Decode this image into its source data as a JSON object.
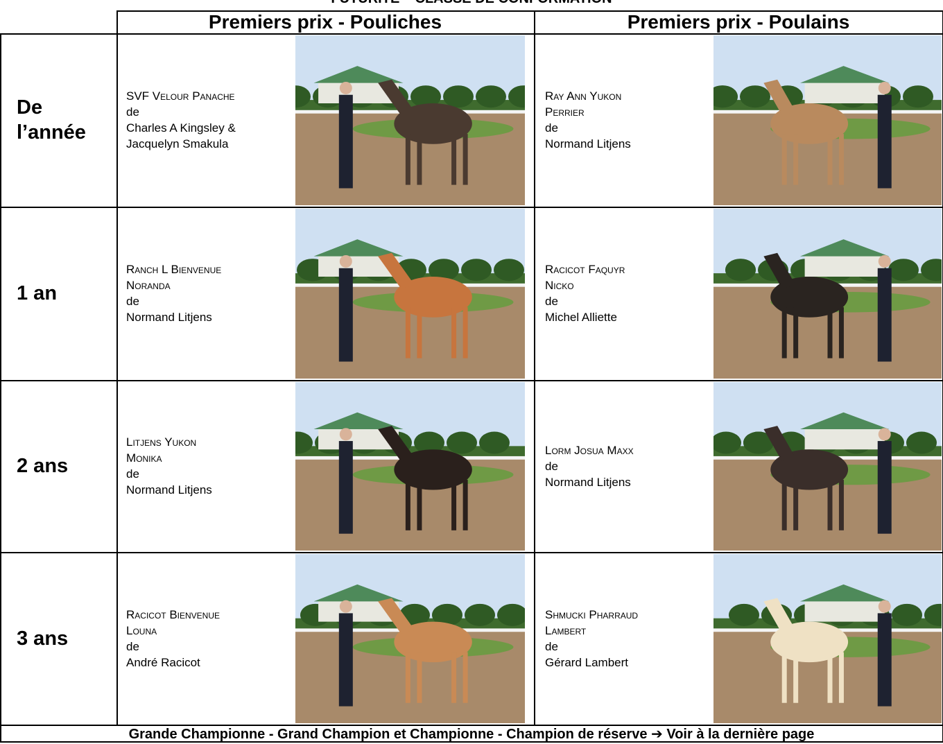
{
  "header": {
    "title": "FUTURITÉ – CLASSE DE CONFORMATION",
    "columns": [
      "Premiers prix - Pouliches",
      "Premiers prix - Poulains"
    ]
  },
  "rows": [
    {
      "label": [
        "De",
        "l’année"
      ],
      "entries": [
        {
          "name": [
            "SVF Velour Panache"
          ],
          "de": "de",
          "owner": [
            "Charles A Kingsley &",
            "Jacquelyn Smakula"
          ]
        },
        {
          "name": [
            "Ray Ann Yukon",
            "Perrier"
          ],
          "de": "de",
          "owner": [
            "Normand Litjens"
          ]
        }
      ]
    },
    {
      "label": [
        "1 an"
      ],
      "entries": [
        {
          "name": [
            "Ranch L Bienvenue",
            "Noranda"
          ],
          "de": "de",
          "owner": [
            "Normand Litjens"
          ]
        },
        {
          "name": [
            "Racicot Faquyr",
            "Nicko"
          ],
          "de": "de",
          "owner": [
            "Michel Alliette"
          ]
        }
      ]
    },
    {
      "label": [
        "2 ans"
      ],
      "entries": [
        {
          "name": [
            "Litjens Yukon",
            "Monika"
          ],
          "de": "de",
          "owner": [
            "Normand Litjens"
          ]
        },
        {
          "name": [
            "Lorm Josua Maxx"
          ],
          "de": "de",
          "owner": [
            "Normand Litjens"
          ]
        }
      ]
    },
    {
      "label": [
        "3 ans"
      ],
      "entries": [
        {
          "name": [
            "Racicot Bienvenue",
            "Louna"
          ],
          "de": "de",
          "owner": [
            "André Racicot"
          ]
        },
        {
          "name": [
            "Shmucki Pharraud",
            "Lambert"
          ],
          "de": "de",
          "owner": [
            "Gérard Lambert"
          ]
        }
      ]
    }
  ],
  "footer": "Grande Championne - Grand Champion et Championne - Champion de réserve ➔ Voir à la dernière page"
}
